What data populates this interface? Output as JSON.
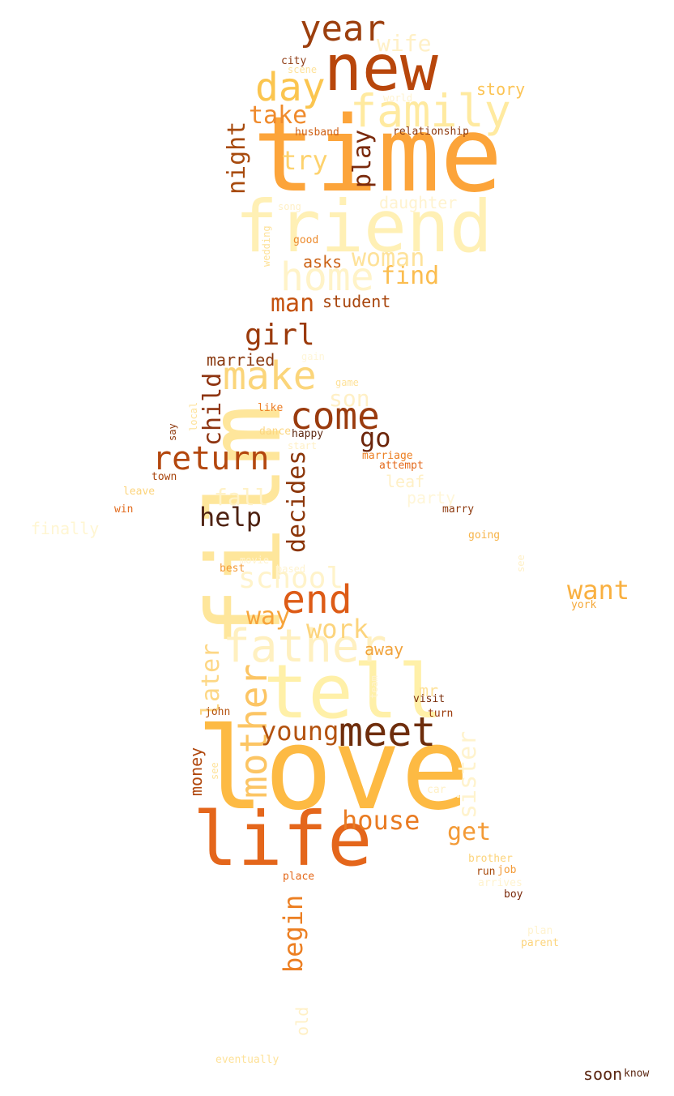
{
  "words": [
    {
      "text": "love",
      "color": "#fdba43"
    },
    {
      "text": "film",
      "color": "#fee69b"
    },
    {
      "text": "time",
      "color": "#fca43a"
    },
    {
      "text": "friend",
      "color": "#fff0b5"
    },
    {
      "text": "tell",
      "color": "#fff0a8"
    },
    {
      "text": "life",
      "color": "#e4661b"
    },
    {
      "text": "new",
      "color": "#b8460b"
    },
    {
      "text": "family",
      "color": "#ffeaa0"
    },
    {
      "text": "father",
      "color": "#fff0c0"
    },
    {
      "text": "mother",
      "color": "#fcc564"
    },
    {
      "text": "meet",
      "color": "#6e2d0c"
    },
    {
      "text": "year",
      "color": "#9c3f0e"
    },
    {
      "text": "home",
      "color": "#fff3c8"
    },
    {
      "text": "day",
      "color": "#fbc54f"
    },
    {
      "text": "make",
      "color": "#fbd57a"
    },
    {
      "text": "come",
      "color": "#9a3b0e"
    },
    {
      "text": "end",
      "color": "#dd5b16"
    },
    {
      "text": "return",
      "color": "#b3470e"
    },
    {
      "text": "school",
      "color": "#fff3ca"
    },
    {
      "text": "house",
      "color": "#e97b22"
    },
    {
      "text": "want",
      "color": "#f9b040"
    },
    {
      "text": "young",
      "color": "#b3520f"
    },
    {
      "text": "work",
      "color": "#fcd47c"
    },
    {
      "text": "girl",
      "color": "#9b3a0b"
    },
    {
      "text": "decides",
      "color": "#8b3508"
    },
    {
      "text": "help",
      "color": "#4e2212"
    },
    {
      "text": "begin",
      "color": "#ec7f22"
    },
    {
      "text": "get",
      "color": "#f39a36"
    },
    {
      "text": "wife",
      "color": "#fff0c6"
    },
    {
      "text": "take",
      "color": "#ef8a2c"
    },
    {
      "text": "try",
      "color": "#fdd26d"
    },
    {
      "text": "play",
      "color": "#7a2a0c"
    },
    {
      "text": "night",
      "color": "#a74a0d"
    },
    {
      "text": "find",
      "color": "#fbbd4f"
    },
    {
      "text": "woman",
      "color": "#fee29a"
    },
    {
      "text": "man",
      "color": "#c4520f"
    },
    {
      "text": "child",
      "color": "#8e3410"
    },
    {
      "text": "son",
      "color": "#fff0c6"
    },
    {
      "text": "go",
      "color": "#6c250a"
    },
    {
      "text": "fall",
      "color": "#fff2c7"
    },
    {
      "text": "way",
      "color": "#f7a43a"
    },
    {
      "text": "later",
      "color": "#fdd785"
    },
    {
      "text": "sister",
      "color": "#fff3cd"
    },
    {
      "text": "old",
      "color": "#fff0c6"
    },
    {
      "text": "story",
      "color": "#fcc455"
    },
    {
      "text": "student",
      "color": "#a8460e"
    },
    {
      "text": "married",
      "color": "#8a3a11"
    },
    {
      "text": "daughter",
      "color": "#fff3cf"
    },
    {
      "text": "asks",
      "color": "#cc6417"
    },
    {
      "text": "away",
      "color": "#f1a33c"
    },
    {
      "text": "mr",
      "color": "#fee29a"
    },
    {
      "text": "money",
      "color": "#b0480e"
    },
    {
      "text": "leaf",
      "color": "#fff0c6"
    },
    {
      "text": "party",
      "color": "#fff6d8"
    },
    {
      "text": "finally",
      "color": "#fff6d2"
    },
    {
      "text": "soon",
      "color": "#5a2611"
    },
    {
      "text": "relationship",
      "color": "#8e3a0f"
    },
    {
      "text": "husband",
      "color": "#cf6218"
    },
    {
      "text": "city",
      "color": "#8e3a11"
    },
    {
      "text": "scene",
      "color": "#fee29a"
    },
    {
      "text": "world",
      "color": "#fff3cf"
    },
    {
      "text": "song",
      "color": "#fff0c6"
    },
    {
      "text": "wedding",
      "color": "#fee29a"
    },
    {
      "text": "good",
      "color": "#ec8a2c"
    },
    {
      "text": "game",
      "color": "#fee29a"
    },
    {
      "text": "like",
      "color": "#eb7d24"
    },
    {
      "text": "dance",
      "color": "#fcd680"
    },
    {
      "text": "happy",
      "color": "#5e2912"
    },
    {
      "text": "start",
      "color": "#fff0c6"
    },
    {
      "text": "marriage",
      "color": "#ec7f22"
    },
    {
      "text": "attempt",
      "color": "#e46a1d"
    },
    {
      "text": "local",
      "color": "#fee29a"
    },
    {
      "text": "say",
      "color": "#8e3a0f"
    },
    {
      "text": "town",
      "color": "#a7430c"
    },
    {
      "text": "leave",
      "color": "#fcd47c"
    },
    {
      "text": "win",
      "color": "#e26c1f"
    },
    {
      "text": "marry",
      "color": "#8e3a0f"
    },
    {
      "text": "going",
      "color": "#f7b449"
    },
    {
      "text": "see",
      "color": "#fff0c6"
    },
    {
      "text": "movie",
      "color": "#fff3cf"
    },
    {
      "text": "based",
      "color": "#fff3cf"
    },
    {
      "text": "best",
      "color": "#f39a36"
    },
    {
      "text": "york",
      "color": "#f5a838"
    },
    {
      "text": "team",
      "color": "#fff3cf"
    },
    {
      "text": "visit",
      "color": "#7b2f0d"
    },
    {
      "text": "turn",
      "color": "#9b3a0b"
    },
    {
      "text": "john",
      "color": "#b3520f"
    },
    {
      "text": "see",
      "color": "#fee29a"
    },
    {
      "text": "car",
      "color": "#fff0c6"
    },
    {
      "text": "brother",
      "color": "#fcd47c"
    },
    {
      "text": "run",
      "color": "#a74a0d"
    },
    {
      "text": "job",
      "color": "#f39a36"
    },
    {
      "text": "arrives",
      "color": "#fff3cf"
    },
    {
      "text": "place",
      "color": "#e46a1d"
    },
    {
      "text": "boy",
      "color": "#7a2a0c"
    },
    {
      "text": "plan",
      "color": "#fff3cf"
    },
    {
      "text": "parent",
      "color": "#fcd47c"
    },
    {
      "text": "eventually",
      "color": "#fee29a"
    },
    {
      "text": "know",
      "color": "#5a2611"
    },
    {
      "text": "gain",
      "color": "#fff6d8"
    }
  ]
}
